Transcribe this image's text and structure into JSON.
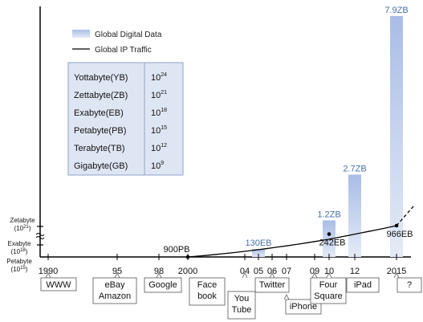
{
  "chart_data": {
    "type": "bar",
    "x_ticks": [
      {
        "label": "1990",
        "year": 1990
      },
      {
        "label": "95",
        "year": 1995
      },
      {
        "label": "98",
        "year": 1998
      },
      {
        "label": "2000",
        "year": 2000
      },
      {
        "label": "04",
        "year": 2004
      },
      {
        "label": "05",
        "year": 2005
      },
      {
        "label": "06",
        "year": 2006
      },
      {
        "label": "07",
        "year": 2007
      },
      {
        "label": "09",
        "year": 2009
      },
      {
        "label": "10",
        "year": 2010
      },
      {
        "label": "12",
        "year": 2012
      },
      {
        "label": "2015",
        "year": 2015
      }
    ],
    "series": [
      {
        "name": "Global Digital Data",
        "kind": "bar",
        "color": "#b5c7ea",
        "points": [
          {
            "year": 2005,
            "value_zb": 0.13,
            "label": "130EB"
          },
          {
            "year": 2010,
            "value_zb": 1.2,
            "label": "1.2ZB"
          },
          {
            "year": 2012,
            "value_zb": 2.7,
            "label": "2.7ZB"
          },
          {
            "year": 2015,
            "value_zb": 7.9,
            "label": "7.9ZB"
          }
        ]
      },
      {
        "name": "Global IP Traffic",
        "kind": "line",
        "color": "#000000",
        "points": [
          {
            "year": 2000,
            "value_eb": 0.9,
            "label": "900PB"
          },
          {
            "year": 2010,
            "value_eb": 242,
            "label": "242EB"
          },
          {
            "year": 2015,
            "value_eb": 966,
            "label": "966EB"
          }
        ],
        "projection": {
          "from_year": 2015,
          "to_year": 2016.2,
          "style": "dashed"
        }
      }
    ],
    "y_axis_units": [
      {
        "name": "Zetabyte",
        "power": "(10",
        "exp": "21",
        "close": ")"
      },
      {
        "name": "Exabyte",
        "power": "(10",
        "exp": "18",
        "close": ")"
      },
      {
        "name": "Petabyte",
        "power": "(10",
        "exp": "15",
        "close": ")"
      }
    ],
    "events": [
      {
        "year": 1990,
        "lines": [
          "WWW"
        ]
      },
      {
        "year": 1995,
        "lines": [
          "eBay",
          "Amazon"
        ]
      },
      {
        "year": 1998,
        "lines": [
          "Google"
        ]
      },
      {
        "year": 2004,
        "lines": [
          "Face",
          "book"
        ]
      },
      {
        "year": 2005,
        "lines": [
          "You",
          "Tube"
        ]
      },
      {
        "year": 2006,
        "lines": [
          "Twitter"
        ]
      },
      {
        "year": 2007,
        "lines": [
          "iPhone"
        ]
      },
      {
        "year": 2009,
        "lines": [
          "Four",
          "Square"
        ]
      },
      {
        "year": 2010,
        "lines": [
          "iPad"
        ]
      },
      {
        "year": 2015,
        "lines": [
          "?"
        ]
      }
    ],
    "unit_table": [
      {
        "name": "Yottabyte(YB)",
        "base": "10",
        "exp": "24"
      },
      {
        "name": "Zettabyte(ZB)",
        "base": "10",
        "exp": "21"
      },
      {
        "name": "Exabyte(EB)",
        "base": "10",
        "exp": "18"
      },
      {
        "name": "Petabyte(PB)",
        "base": "10",
        "exp": "15"
      },
      {
        "name": "Terabyte(TB)",
        "base": "10",
        "exp": "12"
      },
      {
        "name": "Gigabyte(GB)",
        "base": "10",
        "exp": "9"
      }
    ],
    "legend_placement": "top-left",
    "grid": false,
    "colors": {
      "bar": "#b5c7ea",
      "bar_label": "#4a6fa8",
      "table_bg": "#dfe6f3",
      "table_border": "#8fa3c8",
      "axis": "#000000"
    }
  }
}
